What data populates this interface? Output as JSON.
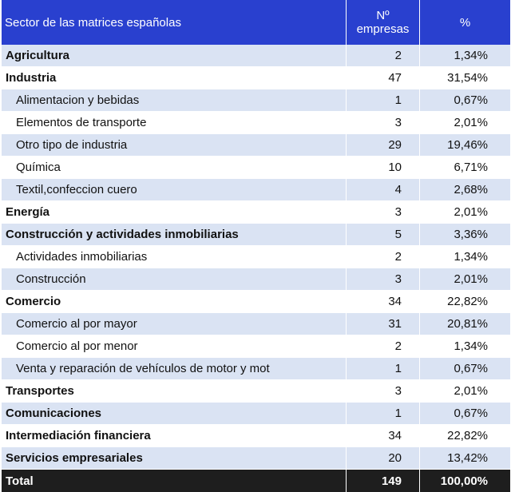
{
  "header": {
    "sector": "Sector de las matrices españolas",
    "count_line1": "Nº",
    "count_line2": "empresas",
    "pct": "%"
  },
  "rows": [
    {
      "label": "Agricultura",
      "count": "2",
      "pct": "1,34%",
      "level": "main"
    },
    {
      "label": "Industria",
      "count": "47",
      "pct": "31,54%",
      "level": "main"
    },
    {
      "label": "Alimentacion y bebidas",
      "count": "1",
      "pct": "0,67%",
      "level": "sub"
    },
    {
      "label": "Elementos de transporte",
      "count": "3",
      "pct": "2,01%",
      "level": "sub"
    },
    {
      "label": "Otro tipo de industria",
      "count": "29",
      "pct": "19,46%",
      "level": "sub"
    },
    {
      "label": "Química",
      "count": "10",
      "pct": "6,71%",
      "level": "sub"
    },
    {
      "label": "Textil,confeccion cuero",
      "count": "4",
      "pct": "2,68%",
      "level": "sub"
    },
    {
      "label": "Energía",
      "count": "3",
      "pct": "2,01%",
      "level": "main"
    },
    {
      "label": "Construcción y actividades inmobiliarias",
      "count": "5",
      "pct": "3,36%",
      "level": "main"
    },
    {
      "label": "Actividades inmobiliarias",
      "count": "2",
      "pct": "1,34%",
      "level": "sub"
    },
    {
      "label": "Construcción",
      "count": "3",
      "pct": "2,01%",
      "level": "sub"
    },
    {
      "label": "Comercio",
      "count": "34",
      "pct": "22,82%",
      "level": "main"
    },
    {
      "label": "Comercio al por mayor",
      "count": "31",
      "pct": "20,81%",
      "level": "sub"
    },
    {
      "label": "Comercio al por menor",
      "count": "2",
      "pct": "1,34%",
      "level": "sub"
    },
    {
      "label": "Venta y reparación de vehículos de motor y mot",
      "count": "1",
      "pct": "0,67%",
      "level": "sub"
    },
    {
      "label": "Transportes",
      "count": "3",
      "pct": "2,01%",
      "level": "main"
    },
    {
      "label": "Comunicaciones",
      "count": "1",
      "pct": "0,67%",
      "level": "main"
    },
    {
      "label": "Intermediación financiera",
      "count": "34",
      "pct": "22,82%",
      "level": "main"
    },
    {
      "label": "Servicios empresariales",
      "count": "20",
      "pct": "13,42%",
      "level": "main"
    }
  ],
  "total": {
    "label": "Total",
    "count": "149",
    "pct": "100,00%"
  },
  "colors": {
    "header": "#2940cf",
    "band": "#dae3f3",
    "total": "#1e1e1e"
  }
}
